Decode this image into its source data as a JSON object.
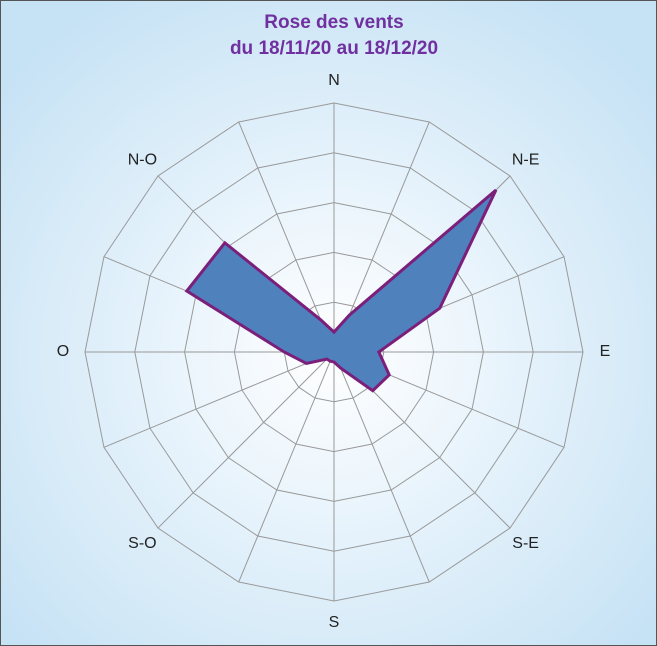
{
  "chart_data": {
    "type": "radar",
    "title": "Rose des vents",
    "subtitle": "du 18/11/20 au 18/12/20",
    "categories": [
      "N",
      null,
      "N-E",
      null,
      "E",
      null,
      "S-E",
      null,
      "S",
      null,
      "S-O",
      null,
      "O",
      null,
      "N-O",
      null
    ],
    "series": [
      {
        "color": "#4f81bd",
        "values": [
          0.4,
          0.8,
          4.6,
          2.3,
          0.9,
          1.2,
          1.1,
          0.35,
          0.2,
          0.2,
          0.2,
          0.6,
          1.0,
          3.2,
          3.1,
          0.7
        ]
      }
    ],
    "ylim": [
      0,
      5
    ],
    "yticks": [
      1,
      2,
      3,
      4,
      5
    ],
    "grid": true
  }
}
